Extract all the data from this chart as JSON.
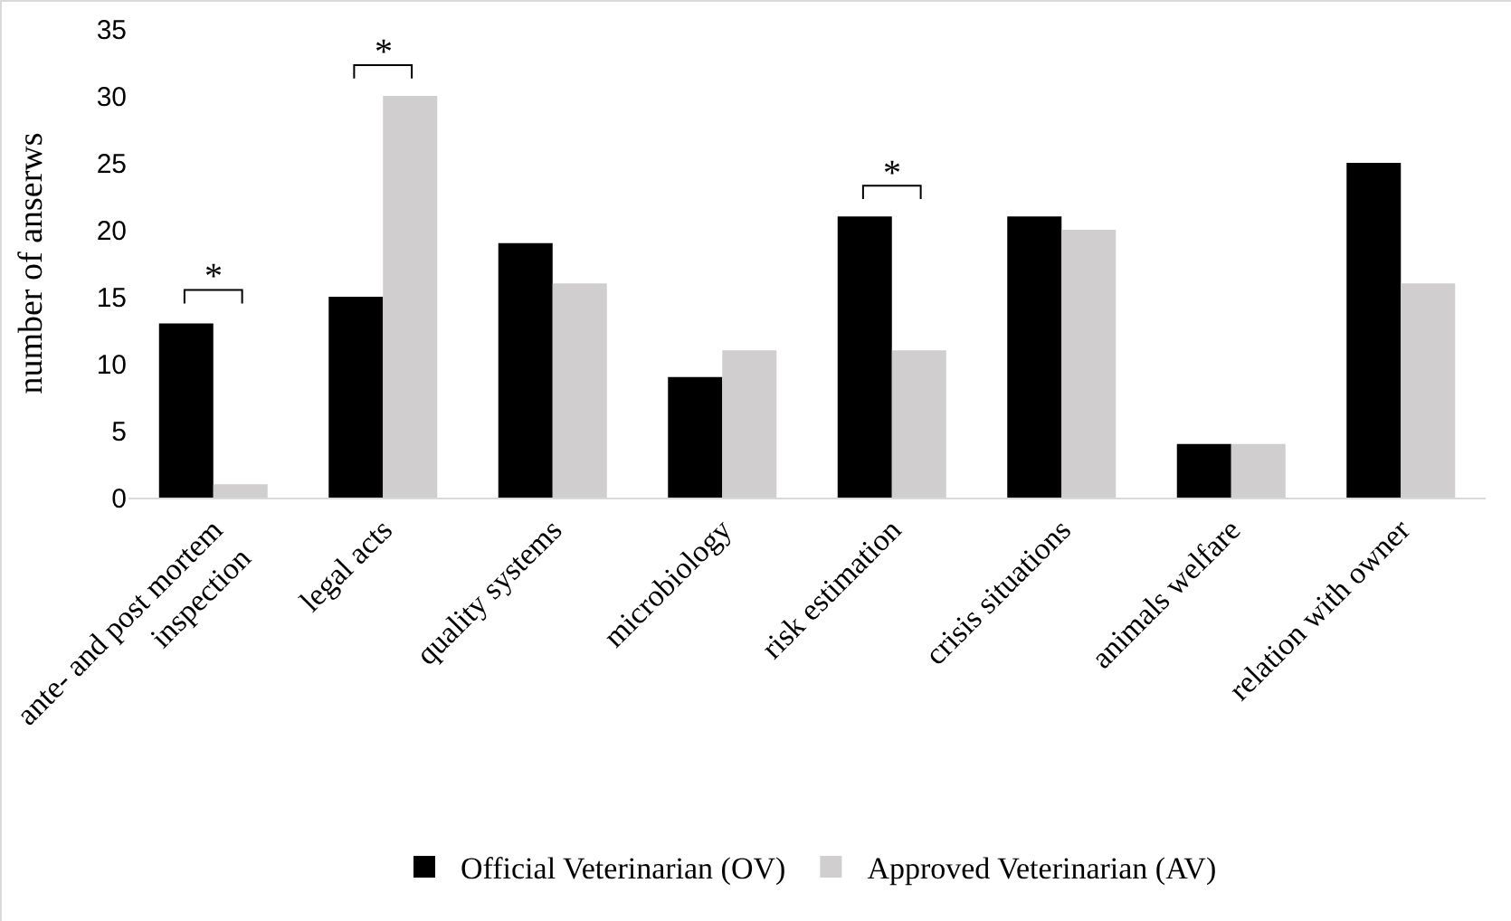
{
  "chart_data": {
    "type": "bar",
    "ylabel": "number of anserws",
    "categories": [
      "ante- and post mortem inspection",
      "legal acts",
      "quality systems",
      "microbiology",
      "risk estimation",
      "crisis situations",
      "animals welfare",
      "relation with owner"
    ],
    "series": [
      {
        "name": "Official Veterinarian (OV)",
        "color": "#000000",
        "values": [
          13,
          15,
          19,
          9,
          21,
          21,
          4,
          25
        ]
      },
      {
        "name": "Approved Veterinarian (AV)",
        "color": "#d0cece",
        "values": [
          1,
          30,
          16,
          11,
          11,
          20,
          4,
          16
        ]
      }
    ],
    "ylim": [
      0,
      35
    ],
    "yticks": [
      0,
      5,
      10,
      15,
      20,
      25,
      30,
      35
    ],
    "grid": false,
    "legend": "bottom",
    "annotations": [
      "*",
      "*",
      "*"
    ]
  }
}
